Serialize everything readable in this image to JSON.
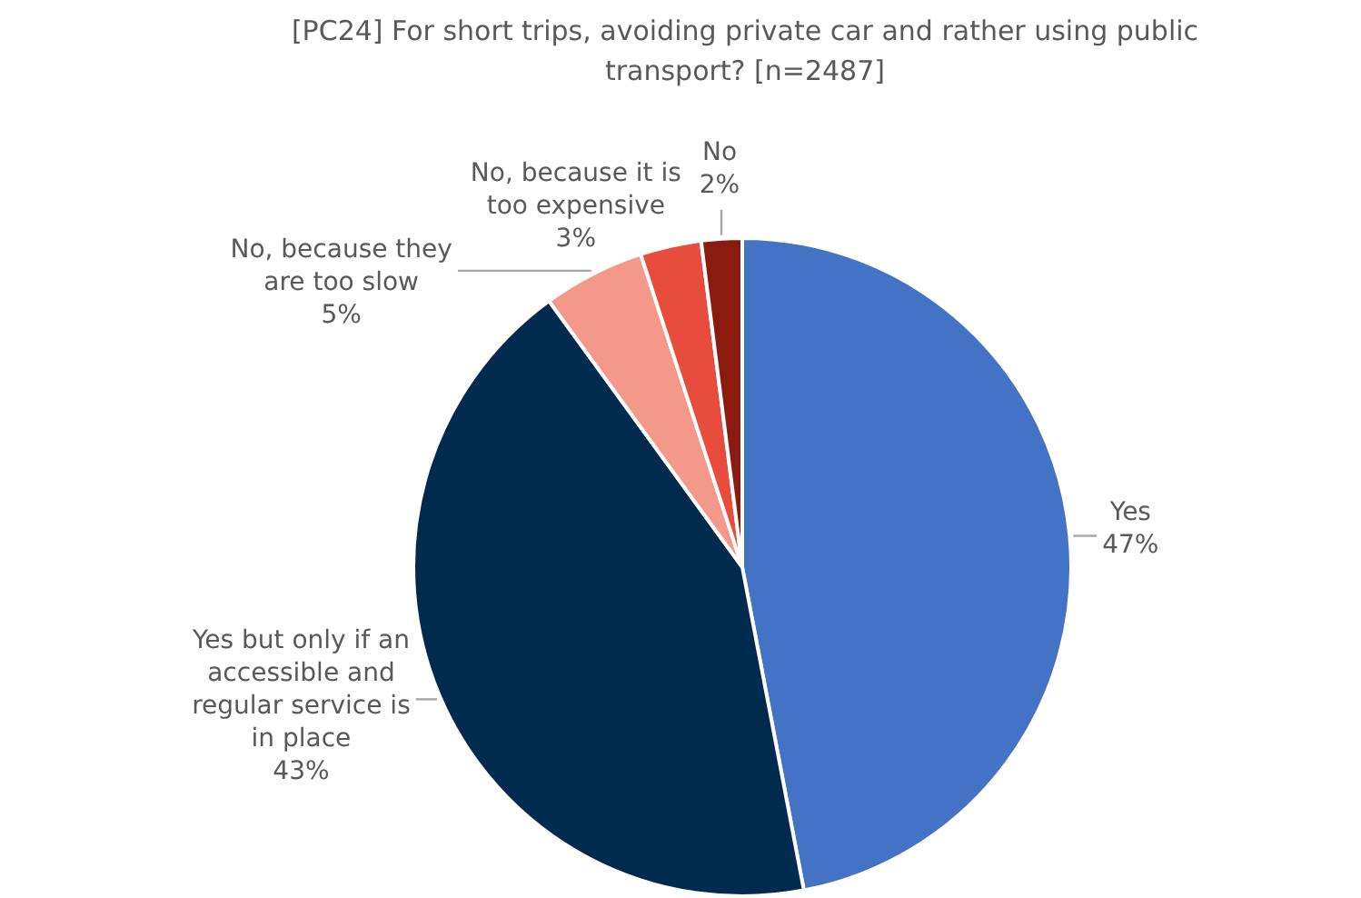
{
  "chart_data": {
    "type": "pie",
    "title": "[PC24] For short trips, avoiding private car and rather using public transport? [n=2487]",
    "categories": [
      "Yes",
      "Yes but only if an accessible and regular service is in place",
      "No, because they are too slow",
      "No, because it is too expensive",
      "No"
    ],
    "values": [
      47,
      43,
      5,
      3,
      2
    ],
    "value_labels": [
      "47%",
      "43%",
      "5%",
      "3%",
      "2%"
    ],
    "colors": [
      "#4472c4",
      "#002b4f",
      "#f4998a",
      "#e84c3d",
      "#8b1a10"
    ],
    "legend": false
  }
}
